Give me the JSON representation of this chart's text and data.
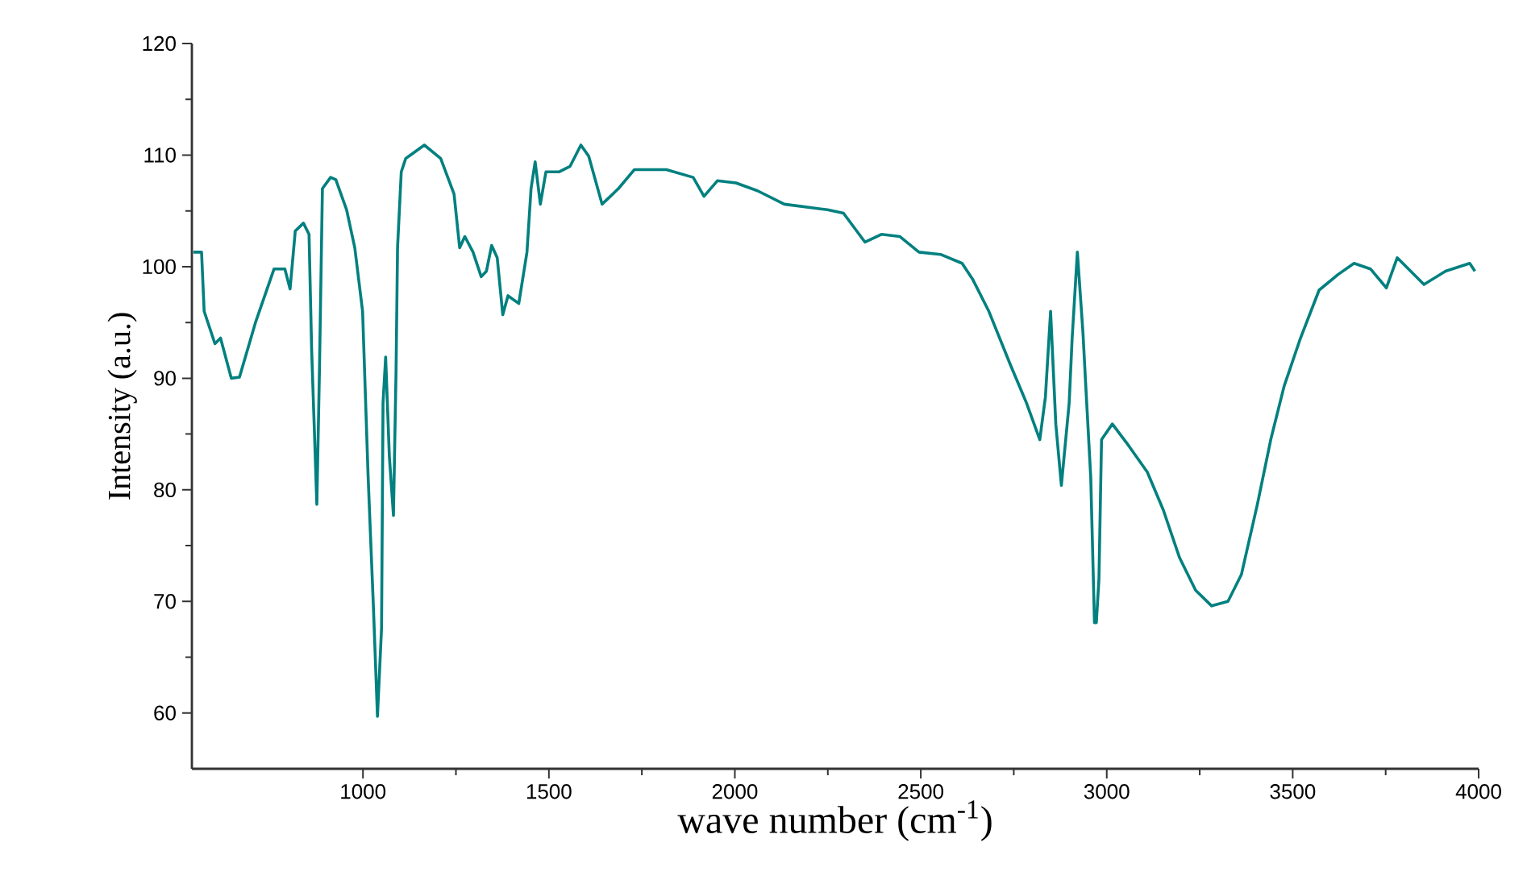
{
  "chart_data": {
    "type": "line",
    "xlabel": "wave number (cm$^{-1}$)",
    "ylabel": "Intensity (a.u.)",
    "color": "#00807f",
    "xlim": [
      540,
      4000
    ],
    "ylim": [
      55,
      120
    ],
    "xticks": [
      1000,
      1500,
      2000,
      2500,
      3000,
      3500,
      4000
    ],
    "yticks": [
      60,
      70,
      80,
      90,
      100,
      110,
      120
    ],
    "x": [
      544,
      566,
      573,
      602,
      617,
      646,
      668,
      711,
      761,
      790,
      804,
      818,
      840,
      855,
      862,
      876,
      883,
      891,
      913,
      927,
      956,
      978,
      999,
      1014,
      1028,
      1039,
      1050,
      1054,
      1061,
      1071,
      1082,
      1089,
      1093,
      1103,
      1115,
      1165,
      1209,
      1245,
      1260,
      1274,
      1296,
      1318,
      1332,
      1346,
      1361,
      1376,
      1390,
      1419,
      1441,
      1452,
      1463,
      1477,
      1492,
      1528,
      1557,
      1586,
      1607,
      1643,
      1687,
      1730,
      1816,
      1888,
      1917,
      1953,
      2003,
      2061,
      2133,
      2249,
      2292,
      2350,
      2394,
      2444,
      2495,
      2553,
      2611,
      2639,
      2683,
      2741,
      2784,
      2820,
      2835,
      2849,
      2863,
      2878,
      2899,
      2907,
      2921,
      2936,
      2943,
      2957,
      2967,
      2972,
      2979,
      2986,
      3015,
      3058,
      3109,
      3152,
      3196,
      3239,
      3282,
      3326,
      3362,
      3405,
      3441,
      3477,
      3521,
      3571,
      3622,
      3665,
      3709,
      3752,
      3781,
      3853,
      3911,
      3976,
      3990
    ],
    "values": [
      101.3,
      101.3,
      96.0,
      93.1,
      93.6,
      90.0,
      90.1,
      95.0,
      99.8,
      99.8,
      98.0,
      103.2,
      103.9,
      102.9,
      92.6,
      78.7,
      90.7,
      107.0,
      108.0,
      107.8,
      105.1,
      101.7,
      96.0,
      81.1,
      69.6,
      59.7,
      67.6,
      87.8,
      91.9,
      83.0,
      77.7,
      90.7,
      101.7,
      108.5,
      109.7,
      110.9,
      109.7,
      106.5,
      101.7,
      102.7,
      101.3,
      99.1,
      99.6,
      101.9,
      100.8,
      95.7,
      97.4,
      96.7,
      101.3,
      107.0,
      109.4,
      105.6,
      108.5,
      108.5,
      109.0,
      110.9,
      109.9,
      105.6,
      107.0,
      108.7,
      108.7,
      108.0,
      106.3,
      107.7,
      107.5,
      106.8,
      105.6,
      105.1,
      104.8,
      102.2,
      102.9,
      102.7,
      101.3,
      101.1,
      100.3,
      98.9,
      96.0,
      91.2,
      87.8,
      84.5,
      88.3,
      96.0,
      85.9,
      80.4,
      87.8,
      93.6,
      101.3,
      94.1,
      89.7,
      81.1,
      68.1,
      68.1,
      72.0,
      84.5,
      85.9,
      84.0,
      81.6,
      78.2,
      73.9,
      71.0,
      69.6,
      70.0,
      72.4,
      78.7,
      84.5,
      89.3,
      93.6,
      97.9,
      99.3,
      100.3,
      99.8,
      98.1,
      100.8,
      98.4,
      99.6,
      100.3,
      99.6
    ]
  }
}
